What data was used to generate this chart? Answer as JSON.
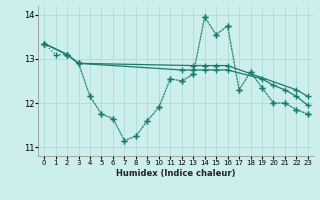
{
  "background_color": "#cceeed",
  "grid_color": "#aadddb",
  "line_color": "#1a7a6e",
  "xlabel": "Humidex (Indice chaleur)",
  "xlim": [
    -0.5,
    23.5
  ],
  "ylim": [
    10.8,
    14.2
  ],
  "yticks": [
    11,
    12,
    13,
    14
  ],
  "xticks": [
    0,
    1,
    2,
    3,
    4,
    5,
    6,
    7,
    8,
    9,
    10,
    11,
    12,
    13,
    14,
    15,
    16,
    17,
    18,
    19,
    20,
    21,
    22,
    23
  ],
  "lines": [
    {
      "x": [
        0,
        1,
        2,
        3,
        4,
        5,
        6,
        7,
        8,
        9,
        10,
        11,
        12,
        13,
        14,
        15,
        16,
        17,
        18,
        19,
        20,
        21,
        22,
        23
      ],
      "y": [
        13.35,
        13.1,
        13.1,
        12.9,
        12.15,
        11.75,
        11.65,
        11.15,
        11.25,
        11.6,
        11.9,
        12.55,
        12.5,
        12.65,
        13.95,
        13.55,
        13.75,
        12.3,
        12.7,
        12.35,
        12.0,
        12.0,
        11.85,
        11.75
      ],
      "style": ":",
      "marker": "+",
      "markersize": 4,
      "linewidth": 0.9
    },
    {
      "x": [
        0,
        2,
        3,
        13,
        14,
        15,
        16,
        22,
        23
      ],
      "y": [
        13.35,
        13.1,
        12.9,
        12.85,
        12.85,
        12.85,
        12.85,
        12.3,
        12.15
      ],
      "style": "-",
      "marker": "+",
      "markersize": 4,
      "linewidth": 0.9
    },
    {
      "x": [
        0,
        2,
        3,
        12,
        13,
        14,
        15,
        16,
        19,
        20,
        21,
        22,
        23
      ],
      "y": [
        13.35,
        13.1,
        12.9,
        12.75,
        12.75,
        12.75,
        12.75,
        12.75,
        12.55,
        12.4,
        12.3,
        12.15,
        11.95
      ],
      "style": "-",
      "marker": "+",
      "markersize": 4,
      "linewidth": 0.9
    },
    {
      "x": [
        0,
        2,
        3,
        4,
        5,
        6,
        7,
        8,
        9,
        10,
        11,
        12,
        13,
        14,
        15,
        16,
        17,
        18,
        19,
        20,
        21,
        22,
        23
      ],
      "y": [
        13.35,
        13.1,
        12.9,
        12.15,
        11.75,
        11.65,
        11.15,
        11.25,
        11.6,
        11.9,
        12.55,
        12.5,
        12.65,
        13.95,
        13.55,
        13.75,
        12.3,
        12.7,
        12.35,
        12.0,
        12.0,
        11.85,
        11.75
      ],
      "style": ":",
      "marker": "+",
      "markersize": 4,
      "linewidth": 0.9
    }
  ]
}
